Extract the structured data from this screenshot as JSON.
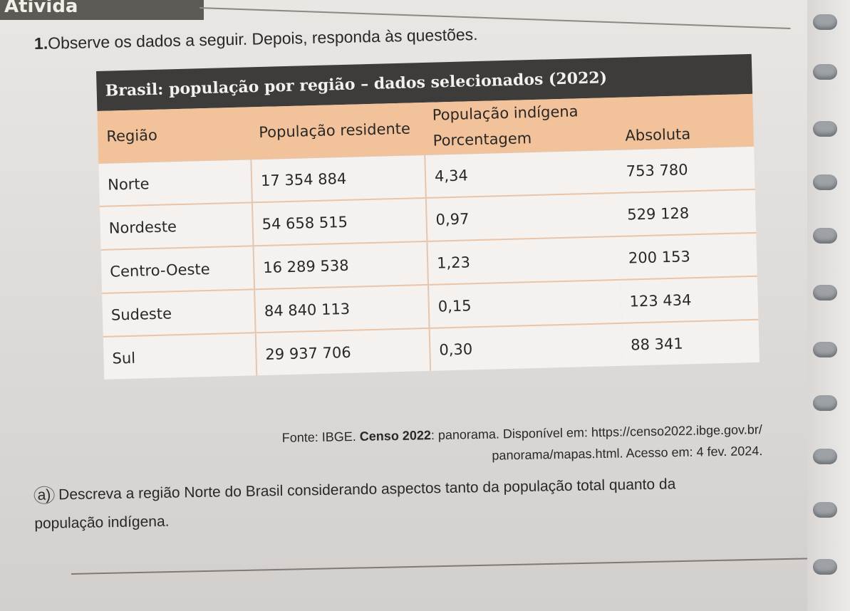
{
  "page": {
    "header_fragment": "Ativida",
    "question_number": "1.",
    "intro": "Observe os dados a seguir. Depois, responda às questões."
  },
  "table": {
    "title": "Brasil: população por região – dados selecionados (2022)",
    "headers": {
      "regiao": "Região",
      "pop_residente": "População residente",
      "pop_indigena": "População indígena",
      "porcentagem": "Porcentagem",
      "absoluta": "Absoluta"
    },
    "rows": [
      {
        "regiao": "Norte",
        "residente": "17 354 884",
        "porcentagem": "4,34",
        "absoluta": "753 780"
      },
      {
        "regiao": "Nordeste",
        "residente": "54 658 515",
        "porcentagem": "0,97",
        "absoluta": "529 128"
      },
      {
        "regiao": "Centro-Oeste",
        "residente": "16 289 538",
        "porcentagem": "1,23",
        "absoluta": "200 153"
      },
      {
        "regiao": "Sudeste",
        "residente": "84 840 113",
        "porcentagem": "0,15",
        "absoluta": "123 434"
      },
      {
        "regiao": "Sul",
        "residente": "29 937 706",
        "porcentagem": "0,30",
        "absoluta": "88 341"
      }
    ]
  },
  "source": {
    "prefix": "Fonte: IBGE. ",
    "bold": "Censo 2022",
    "rest": ": panorama. Disponível em: https://censo2022.ibge.gov.br/",
    "line2": "panorama/mapas.html. Acesso em: 4 fev. 2024."
  },
  "question_a": {
    "label": "a)",
    "text": "Descreva a região Norte do Brasil considerando aspectos tanto da população total quanto da população indígena."
  }
}
